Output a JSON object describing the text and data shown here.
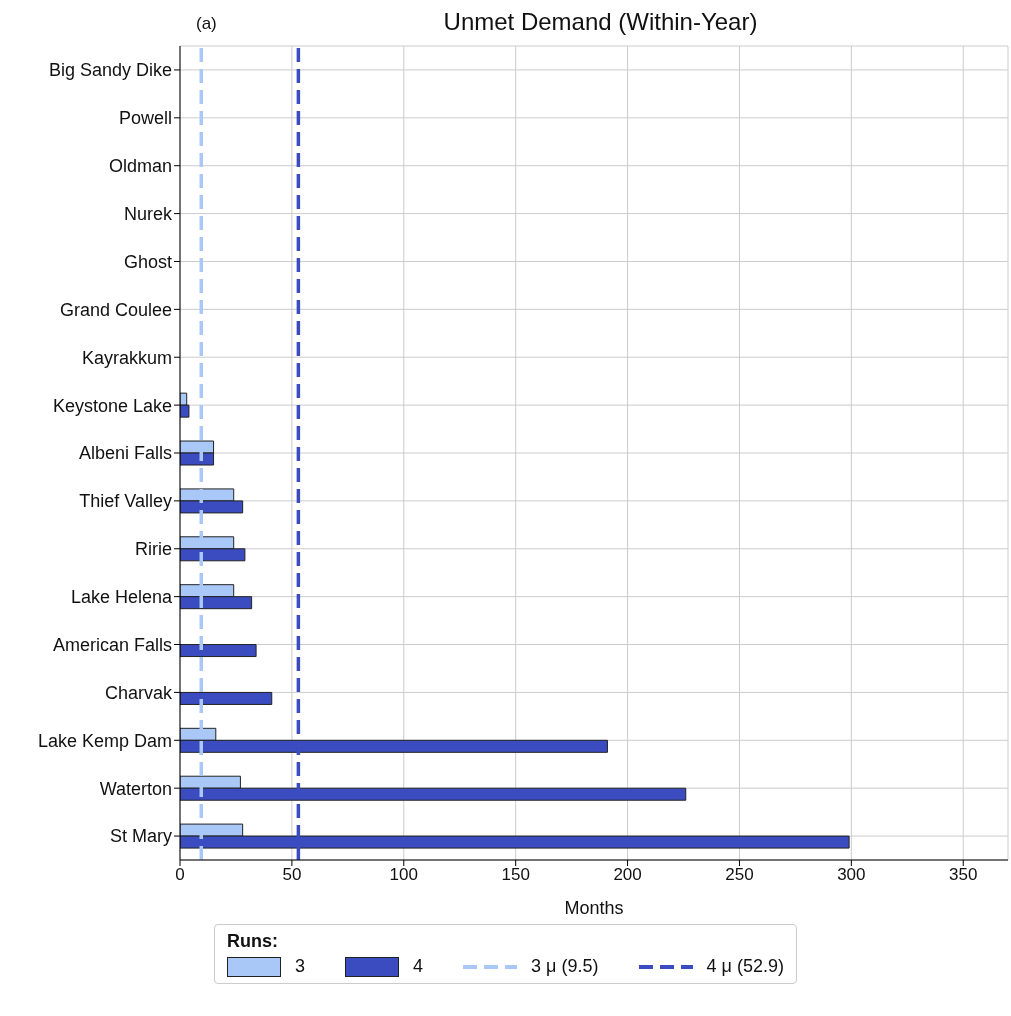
{
  "chart_data": {
    "type": "bar",
    "orientation": "horizontal",
    "title": "Unmet Demand (Within-Year)",
    "xlabel": "Months",
    "annotations": [
      "(a)"
    ],
    "categories": [
      "Big Sandy Dike",
      "Powell",
      "Oldman",
      "Nurek",
      "Ghost",
      "Grand Coulee",
      "Kayrakkum",
      "Keystone Lake",
      "Albeni Falls",
      "Thief Valley",
      "Ririe",
      "Lake Helena",
      "American Falls",
      "Charvak",
      "Lake Kemp Dam",
      "Waterton",
      "St Mary"
    ],
    "series": [
      {
        "name": "3",
        "color": "#a9c8f7",
        "values": [
          0,
          0,
          0,
          0,
          0,
          0,
          0,
          3,
          15,
          24,
          24,
          24,
          0,
          0,
          16,
          27,
          28
        ]
      },
      {
        "name": "4",
        "color": "#3a4cc0",
        "values": [
          0,
          0,
          0,
          0,
          0,
          0,
          0,
          4,
          15,
          28,
          29,
          32,
          34,
          41,
          191,
          226,
          299
        ]
      }
    ],
    "xlim": [
      0,
      370
    ],
    "xticks": [
      0,
      50,
      100,
      150,
      200,
      250,
      300,
      350
    ],
    "grid": true,
    "ref_lines": [
      {
        "axis": "x",
        "value": 9.5,
        "label": "3 μ (9.5)",
        "color": "#a9c8f7",
        "line_style": "dashed"
      },
      {
        "axis": "x",
        "value": 52.9,
        "label": "4 μ (52.9)",
        "color": "#3a4cc0",
        "line_style": "dashed"
      }
    ],
    "legend": "bottom",
    "legend_title": "Runs:"
  }
}
